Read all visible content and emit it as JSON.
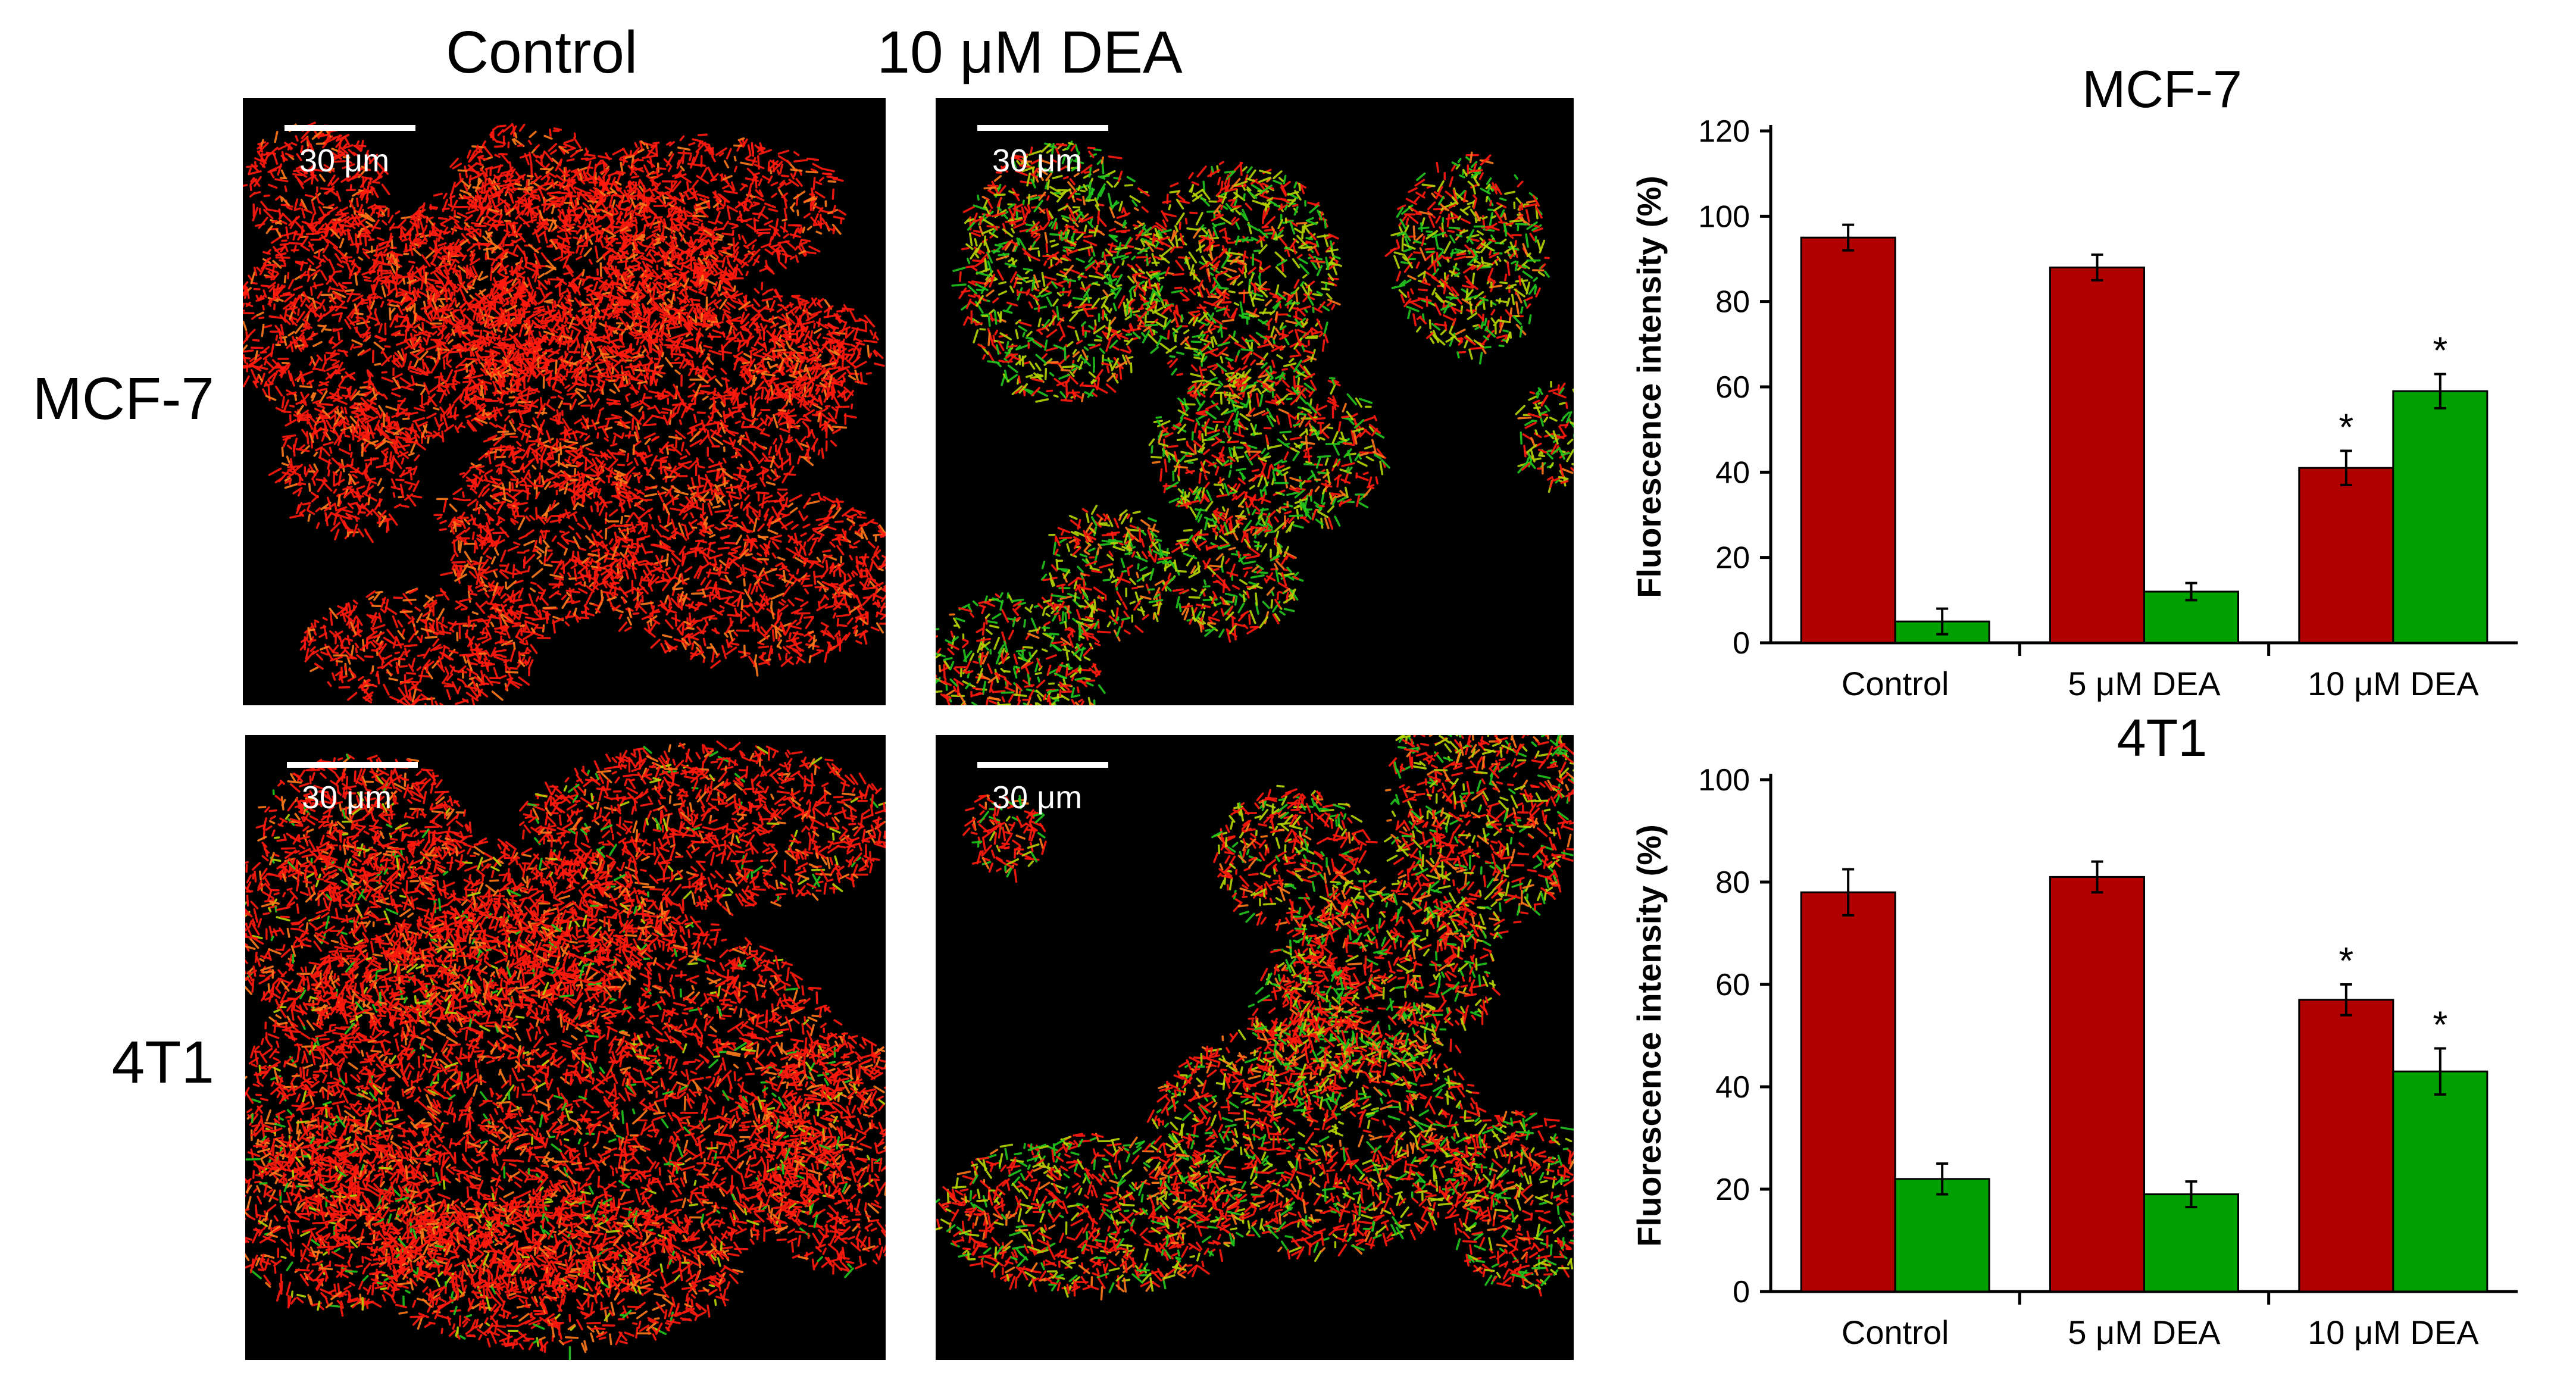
{
  "columns": [
    "Control",
    "10 μM DEA"
  ],
  "rows": [
    "MCF-7",
    "4T1"
  ],
  "scale_bar_label": "30 μm",
  "colors": {
    "red_series": "#B10000",
    "green_series": "#00A000",
    "image_bg": "#000000"
  },
  "panels": [
    {
      "row": "MCF-7",
      "column": "Control",
      "scale": "30 μm"
    },
    {
      "row": "MCF-7",
      "column": "10 μM DEA",
      "scale": "30 μm"
    },
    {
      "row": "4T1",
      "column": "Control",
      "scale": "30 μm"
    },
    {
      "row": "4T1",
      "column": "10 μM DEA",
      "scale": "30 μm"
    }
  ],
  "chart_data": [
    {
      "type": "bar",
      "title": "MCF-7",
      "ylabel": "Fluorescence intensity (%)",
      "xlabel": "",
      "categories": [
        "Control",
        "5 μM DEA",
        "10 μM DEA"
      ],
      "ylim": [
        0,
        120
      ],
      "yticks": [
        0,
        20,
        40,
        60,
        80,
        100,
        120
      ],
      "series": [
        {
          "color": "#B10000",
          "values": [
            95,
            88,
            41
          ],
          "errors": [
            3,
            3,
            4
          ],
          "significant": [
            false,
            false,
            true
          ]
        },
        {
          "color": "#00A000",
          "values": [
            5,
            12,
            59
          ],
          "errors": [
            3,
            2,
            4
          ],
          "significant": [
            false,
            false,
            true
          ]
        }
      ],
      "grid": false,
      "significance_marker": "*"
    },
    {
      "type": "bar",
      "title": "4T1",
      "ylabel": "Fluorescence intensity (%)",
      "xlabel": "",
      "categories": [
        "Control",
        "5 μM DEA",
        "10 μM DEA"
      ],
      "ylim": [
        0,
        100
      ],
      "yticks": [
        0,
        20,
        40,
        60,
        80,
        100
      ],
      "series": [
        {
          "color": "#B10000",
          "values": [
            78,
            81,
            57
          ],
          "errors": [
            4.5,
            3,
            3
          ],
          "significant": [
            false,
            false,
            true
          ]
        },
        {
          "color": "#00A000",
          "values": [
            22,
            19,
            43
          ],
          "errors": [
            3,
            2.5,
            4.5
          ],
          "significant": [
            false,
            false,
            true
          ]
        }
      ],
      "grid": false,
      "significance_marker": "*"
    }
  ]
}
